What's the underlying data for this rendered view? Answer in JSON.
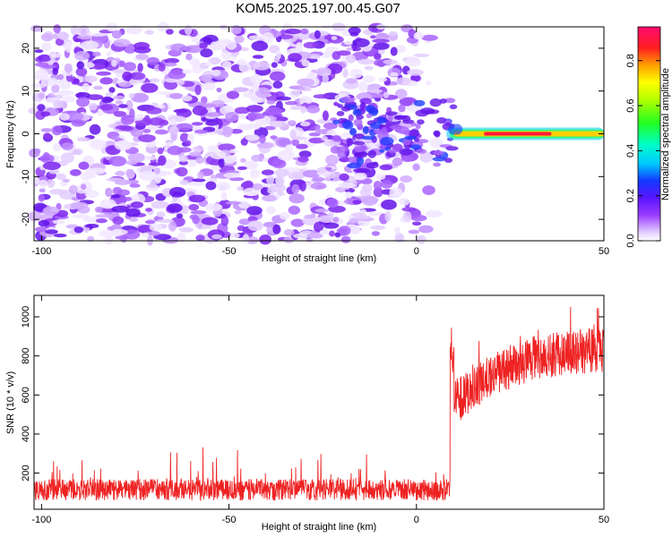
{
  "title": "KOM5.2025.197.00.45.G07",
  "chart_data": [
    {
      "type": "heatmap",
      "xlabel": "Height of straight line (km)",
      "ylabel": "Frequency (Hz)",
      "xlim": [
        -102,
        50
      ],
      "ylim": [
        -25,
        25
      ],
      "x_ticks": [
        "-100",
        "-50",
        "0",
        "50"
      ],
      "y_ticks": [
        "20",
        "10",
        "0",
        "-10",
        "-20"
      ],
      "colorbar": {
        "label": "Normalized spectral amplitude",
        "range": [
          0.0,
          0.95
        ],
        "ticks": [
          "0.0",
          "0.2",
          "0.4",
          "0.6",
          "0.8"
        ]
      },
      "features": {
        "noise_region_x": [
          -102,
          -10
        ],
        "noise_region_y": [
          -25,
          25
        ],
        "band_center_frequency": 0,
        "band_start_x": 8,
        "band_peak_x_range": [
          18,
          36
        ],
        "band_peak_amplitude": 0.9
      }
    },
    {
      "type": "line",
      "xlabel": "Height of straight line (km)",
      "ylabel": "SNR (10 * v/v)",
      "xlim": [
        -102,
        50
      ],
      "ylim": [
        15,
        1110
      ],
      "x_ticks": [
        "-100",
        "-50",
        "0",
        "50"
      ],
      "y_ticks": [
        "1000",
        "800",
        "600",
        "400",
        "200"
      ],
      "series_color": "#ee2222",
      "features": {
        "baseline_mean": 115,
        "baseline_range": [
          20,
          340
        ],
        "jump_x": 9,
        "post_jump_trend": [
          [
            10,
            560
          ],
          [
            20,
            700
          ],
          [
            30,
            780
          ],
          [
            40,
            820
          ],
          [
            50,
            830
          ]
        ],
        "max_value": 1110
      }
    }
  ]
}
